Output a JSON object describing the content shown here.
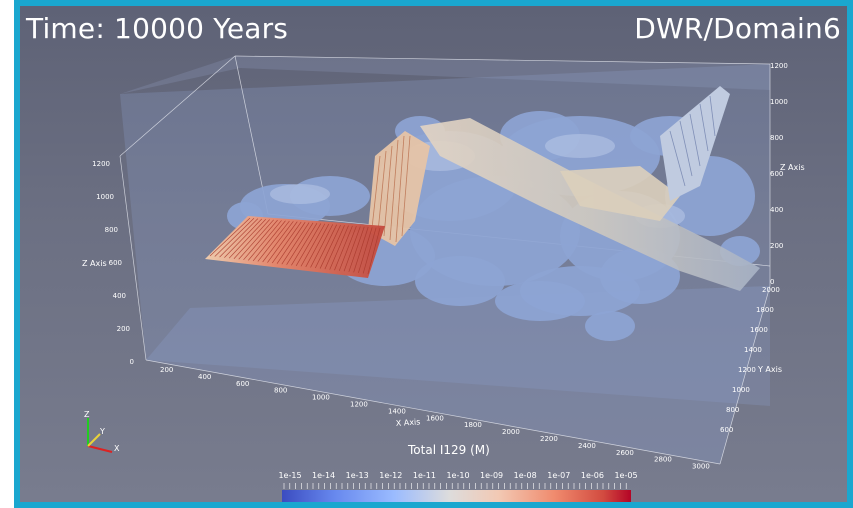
{
  "header": {
    "time_label": "Time: 10000 Years",
    "domain_label": "DWR/Domain6"
  },
  "axes": {
    "z_axis_label": "Z Axis",
    "x_axis_label": "X Axis",
    "y_axis_label": "Y Axis",
    "z_left_ticks": [
      "0",
      "200",
      "400",
      "600",
      "800",
      "1000",
      "1200"
    ],
    "z_right_ticks": [
      "1200",
      "1000",
      "800",
      "600",
      "400",
      "200",
      "0"
    ],
    "x_ticks": [
      "200",
      "400",
      "600",
      "800",
      "1000",
      "1200",
      "1400",
      "1600",
      "1800",
      "2000",
      "2200",
      "2400",
      "2600",
      "2800",
      "3000"
    ],
    "y_ticks": [
      "2000",
      "1800",
      "1600",
      "1400",
      "1200",
      "1000",
      "800",
      "600"
    ]
  },
  "orientation": {
    "z": "Z",
    "y": "Y",
    "x": "X"
  },
  "colorbar": {
    "title": "Total I129 (M)",
    "ticks": [
      "1e-15",
      "1e-14",
      "1e-13",
      "1e-12",
      "1e-11",
      "1e-10",
      "1e-09",
      "1e-08",
      "1e-07",
      "1e-06",
      "1e-05"
    ],
    "colors": [
      "#3b4cc0",
      "#6788ee",
      "#9abbff",
      "#c9d7f0",
      "#edd1c2",
      "#f7a889",
      "#e26952",
      "#b40426"
    ]
  },
  "colors": {
    "frame": "#1aa7cf",
    "background_top": "#5e6276",
    "background_bottom": "#787c8e",
    "plume": "#8da4d4"
  }
}
